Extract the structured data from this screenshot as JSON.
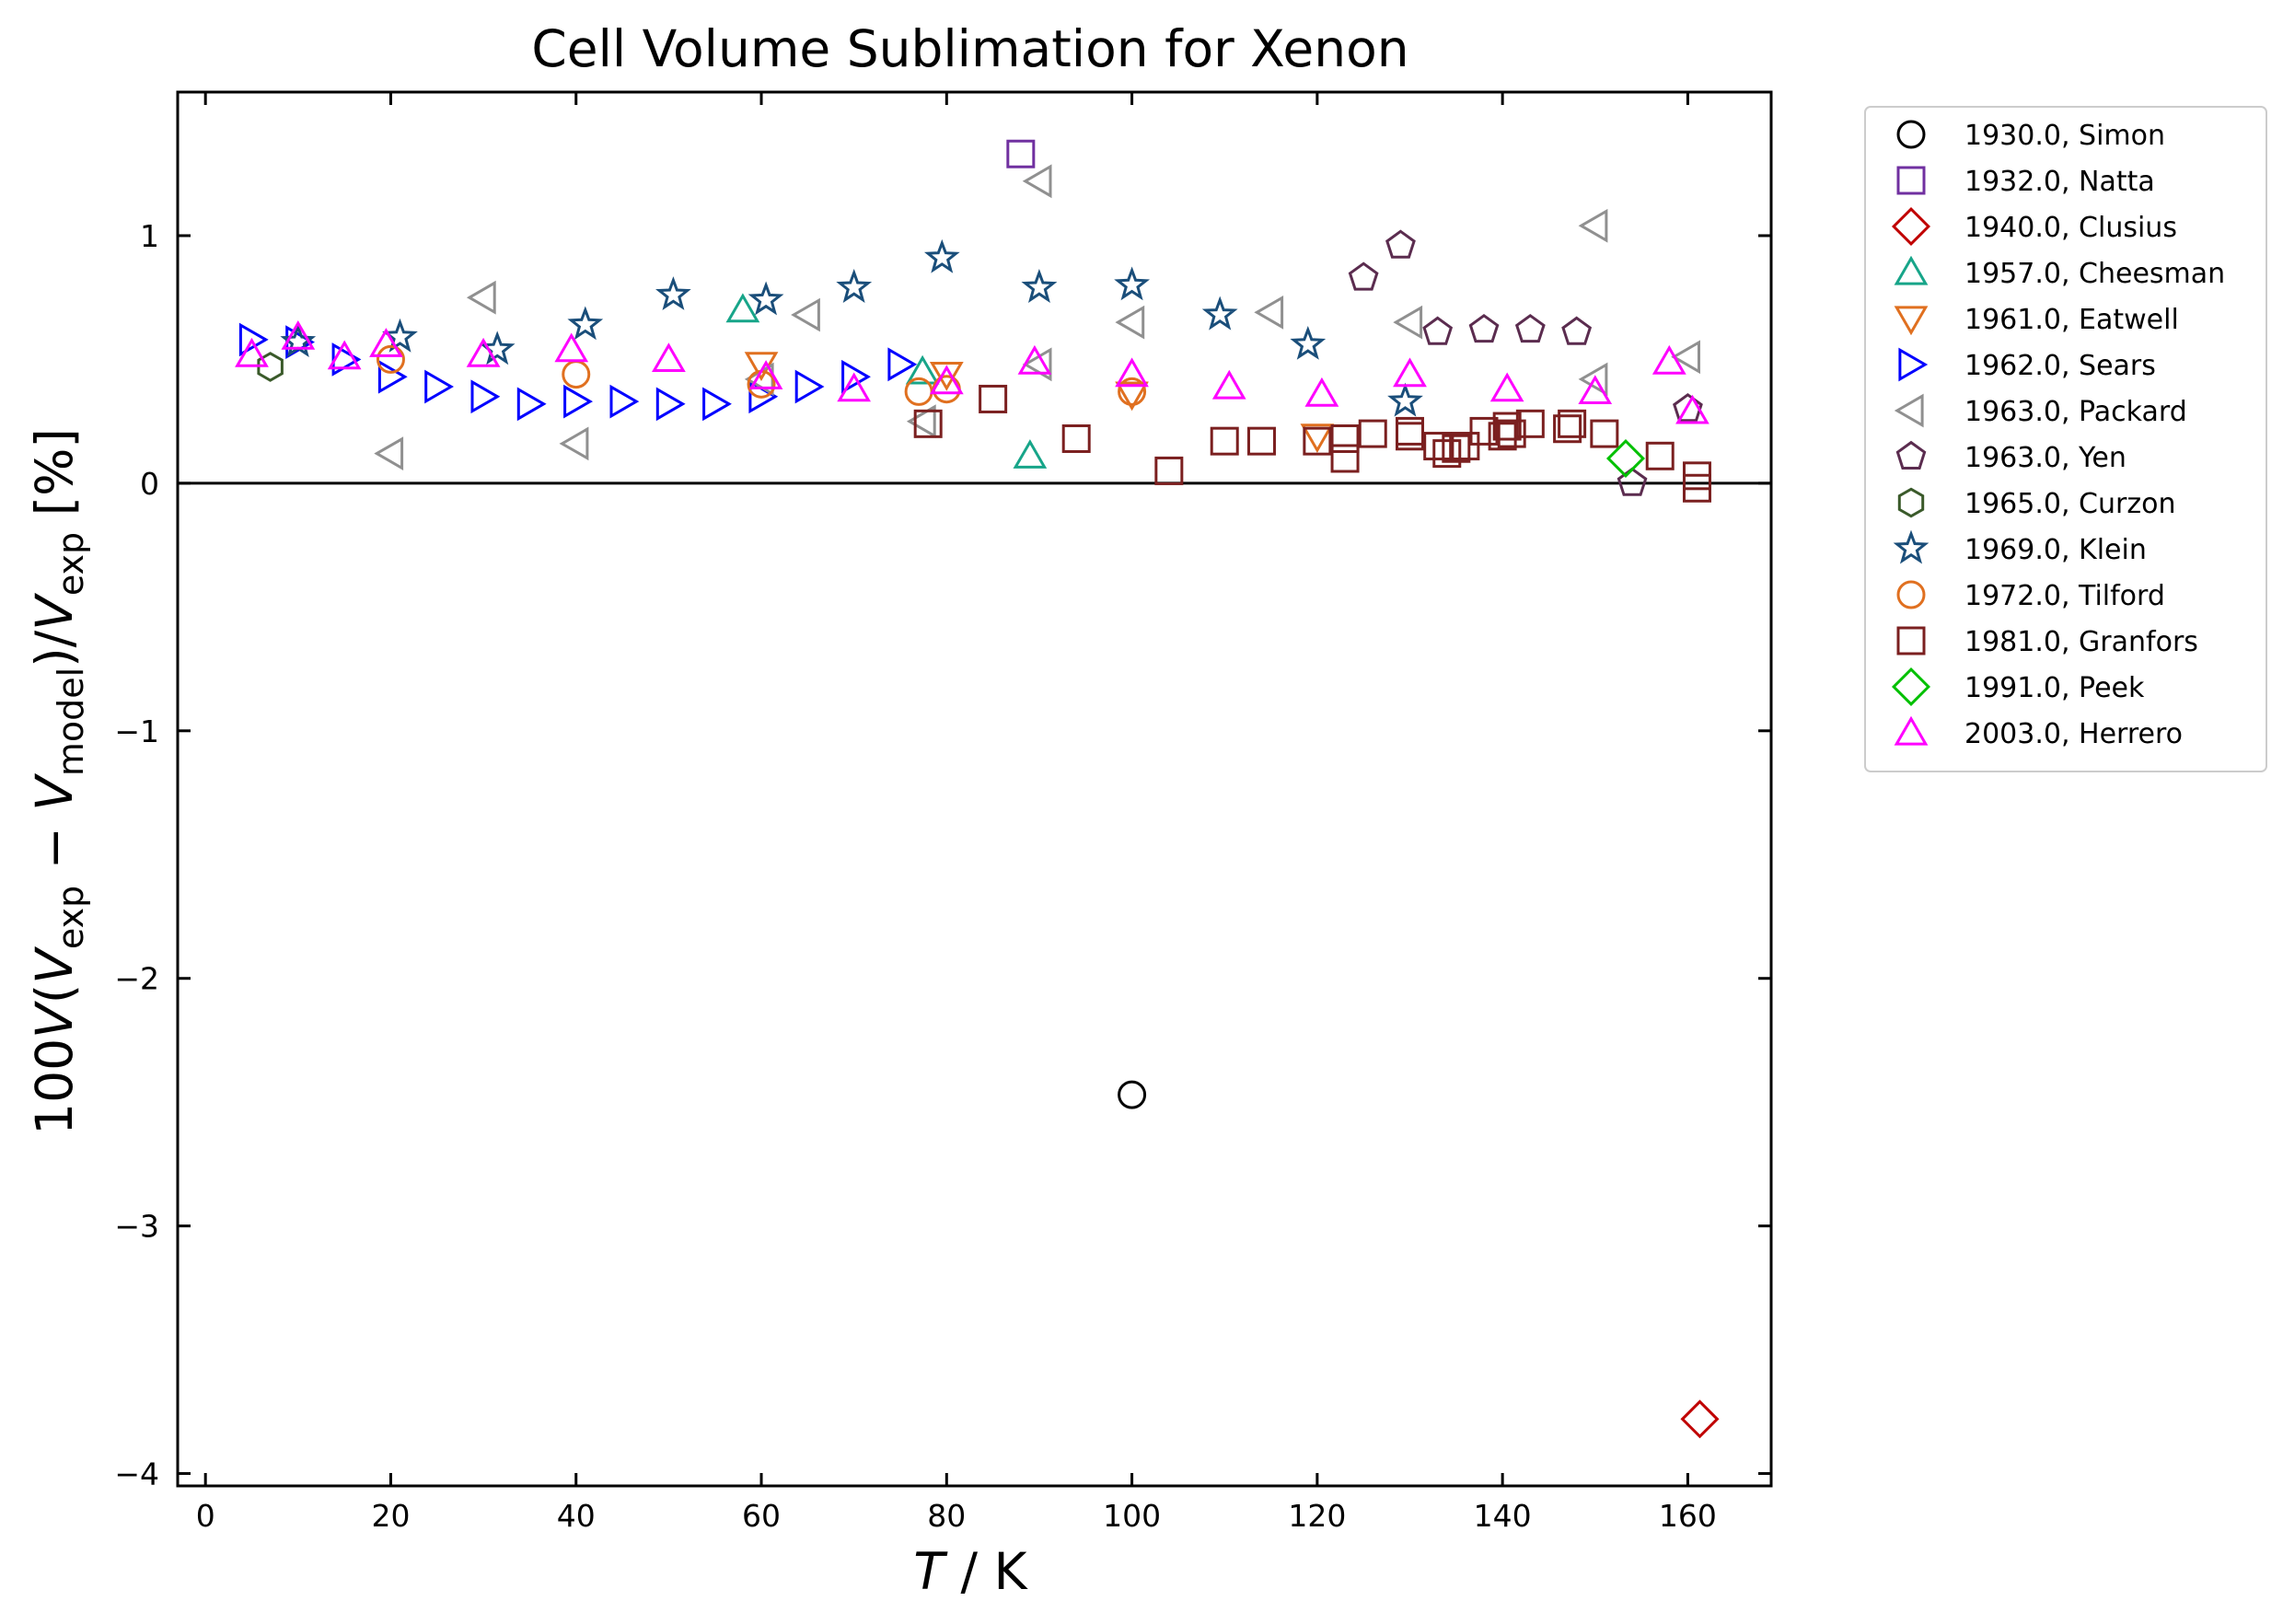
{
  "chart_data": {
    "type": "scatter",
    "title": "Cell Volume Sublimation for Xenon",
    "xlabel": {
      "italic": "T",
      "rest": " / K"
    },
    "ylabel": {
      "prefix": "100",
      "V": "V",
      "open": "(",
      "Vexp": "V",
      "sub_exp": "exp",
      "minus": " − ",
      "Vmod": "V",
      "sub_model": "model",
      "close": ")/",
      "Vexp2": "V",
      "sub_exp2": "exp",
      "unit": " [%]"
    },
    "xlim": [
      -3,
      169
    ],
    "ylim": [
      -4.05,
      1.58
    ],
    "xticks": [
      0,
      20,
      40,
      60,
      80,
      100,
      120,
      140,
      160
    ],
    "xtick_labels": [
      "0",
      "20",
      "40",
      "60",
      "80",
      "100",
      "120",
      "140",
      "160"
    ],
    "yticks": [
      -4,
      -3,
      -2,
      -1,
      0,
      1
    ],
    "ytick_labels": [
      "−4",
      "−3",
      "−2",
      "−1",
      "0",
      "1"
    ],
    "zero_line": true,
    "grid": false,
    "legend_position": "outside-right",
    "series": [
      {
        "name": "1930.0, Simon",
        "marker": "circle",
        "color": "#000000",
        "points": [
          [
            100,
            -2.47
          ]
        ]
      },
      {
        "name": "1932.0, Natta",
        "marker": "square",
        "color": "#7030a0",
        "points": [
          [
            88,
            1.33
          ]
        ]
      },
      {
        "name": "1940.0, Clusius",
        "marker": "diamond",
        "color": "#c00000",
        "points": [
          [
            161.3,
            -3.78
          ]
        ]
      },
      {
        "name": "1957.0, Cheesman",
        "marker": "triangle-up",
        "color": "#17a589",
        "points": [
          [
            58,
            0.7
          ],
          [
            77.4,
            0.45
          ],
          [
            89,
            0.11
          ]
        ]
      },
      {
        "name": "1961.0, Eatwell",
        "marker": "triangle-down",
        "color": "#e07020",
        "points": [
          [
            60,
            0.48
          ],
          [
            80,
            0.44
          ],
          [
            100,
            0.36
          ],
          [
            120,
            0.19
          ]
        ]
      },
      {
        "name": "1962.0, Sears",
        "marker": "triangle-right",
        "color": "#0000ff",
        "points": [
          [
            5,
            0.58
          ],
          [
            10,
            0.57
          ],
          [
            15,
            0.5
          ],
          [
            20,
            0.43
          ],
          [
            25,
            0.39
          ],
          [
            30,
            0.35
          ],
          [
            35,
            0.32
          ],
          [
            40,
            0.33
          ],
          [
            45,
            0.33
          ],
          [
            50,
            0.32
          ],
          [
            55,
            0.32
          ],
          [
            60,
            0.35
          ],
          [
            65,
            0.39
          ],
          [
            70,
            0.43
          ],
          [
            75,
            0.48
          ]
        ]
      },
      {
        "name": "1963.0, Packard",
        "marker": "triangle-left",
        "color": "#909090",
        "points": [
          [
            20,
            0.12
          ],
          [
            30,
            0.75
          ],
          [
            40,
            0.16
          ],
          [
            60,
            0.42
          ],
          [
            65,
            0.68
          ],
          [
            77.5,
            0.25
          ],
          [
            90,
            1.22
          ],
          [
            90,
            0.48
          ],
          [
            100,
            0.65
          ],
          [
            115,
            0.69
          ],
          [
            130,
            0.65
          ],
          [
            150,
            1.04
          ],
          [
            150,
            0.42
          ],
          [
            160,
            0.51
          ]
        ]
      },
      {
        "name": "1963.0, Yen",
        "marker": "pentagon",
        "color": "#5b2c4f",
        "points": [
          [
            125,
            0.83
          ],
          [
            129,
            0.96
          ],
          [
            133,
            0.61
          ],
          [
            138,
            0.62
          ],
          [
            143,
            0.62
          ],
          [
            148,
            0.61
          ],
          [
            154,
            0.0
          ],
          [
            160,
            0.3
          ]
        ]
      },
      {
        "name": "1965.0, Curzon",
        "marker": "hexagon",
        "color": "#3a5a2a",
        "points": [
          [
            7,
            0.47
          ]
        ]
      },
      {
        "name": "1969.0, Klein",
        "marker": "star",
        "color": "#1a4e7a",
        "points": [
          [
            10,
            0.57
          ],
          [
            21,
            0.59
          ],
          [
            31.5,
            0.54
          ],
          [
            41,
            0.64
          ],
          [
            50.5,
            0.76
          ],
          [
            60.5,
            0.74
          ],
          [
            70,
            0.79
          ],
          [
            79.5,
            0.91
          ],
          [
            90,
            0.79
          ],
          [
            100,
            0.8
          ],
          [
            109.5,
            0.68
          ],
          [
            119,
            0.56
          ],
          [
            129.5,
            0.33
          ]
        ]
      },
      {
        "name": "1972.0, Tilford",
        "marker": "circle",
        "color": "#e07020",
        "points": [
          [
            20,
            0.5
          ],
          [
            40,
            0.44
          ],
          [
            60,
            0.4
          ],
          [
            77,
            0.37
          ],
          [
            80,
            0.38
          ],
          [
            100,
            0.37
          ]
        ]
      },
      {
        "name": "1981.0, Granfors",
        "marker": "square",
        "color": "#7b2020",
        "points": [
          [
            78,
            0.24
          ],
          [
            85,
            0.34
          ],
          [
            94,
            0.18
          ],
          [
            104,
            0.05
          ],
          [
            110,
            0.17
          ],
          [
            114,
            0.17
          ],
          [
            120,
            0.17
          ],
          [
            123,
            0.1
          ],
          [
            123,
            0.18
          ],
          [
            126,
            0.2
          ],
          [
            130,
            0.21
          ],
          [
            130,
            0.19
          ],
          [
            133,
            0.15
          ],
          [
            134,
            0.12
          ],
          [
            135,
            0.14
          ],
          [
            136,
            0.15
          ],
          [
            138,
            0.21
          ],
          [
            140,
            0.19
          ],
          [
            140.5,
            0.23
          ],
          [
            141,
            0.2
          ],
          [
            143,
            0.24
          ],
          [
            147,
            0.22
          ],
          [
            147.5,
            0.24
          ],
          [
            151,
            0.2
          ],
          [
            157,
            0.11
          ],
          [
            161,
            0.03
          ],
          [
            161,
            -0.02
          ]
        ]
      },
      {
        "name": "1991.0, Peek",
        "marker": "diamond",
        "color": "#00c000",
        "points": [
          [
            153.3,
            0.1
          ]
        ]
      },
      {
        "name": "2003.0, Herrero",
        "marker": "triangle-up",
        "color": "#ff00ff",
        "points": [
          [
            5,
            0.52
          ],
          [
            10,
            0.59
          ],
          [
            15,
            0.51
          ],
          [
            19.5,
            0.56
          ],
          [
            30,
            0.52
          ],
          [
            39.5,
            0.54
          ],
          [
            50,
            0.5
          ],
          [
            60.5,
            0.43
          ],
          [
            70,
            0.38
          ],
          [
            80,
            0.41
          ],
          [
            89.5,
            0.49
          ],
          [
            100,
            0.44
          ],
          [
            110.5,
            0.39
          ],
          [
            120.5,
            0.36
          ],
          [
            130,
            0.44
          ],
          [
            140.5,
            0.38
          ],
          [
            150,
            0.37
          ],
          [
            158,
            0.49
          ],
          [
            160.5,
            0.29
          ]
        ]
      }
    ]
  }
}
